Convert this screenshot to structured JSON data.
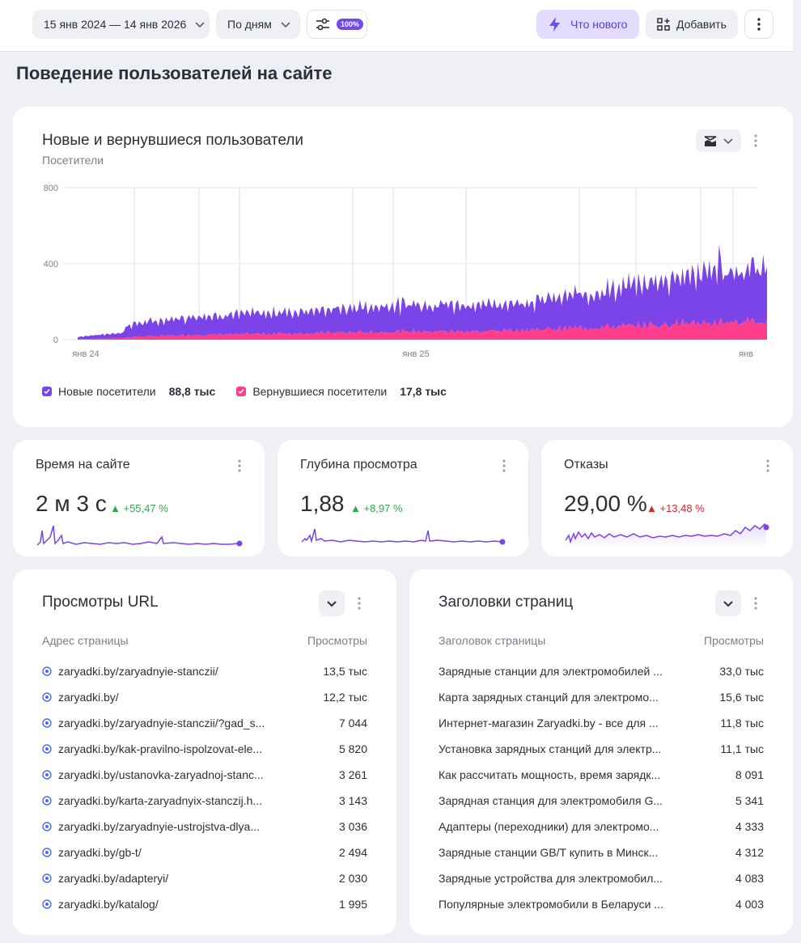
{
  "topbar": {
    "date_range": "15 янв 2024 — 14 янв 2026",
    "grouping": "По дням",
    "sampling_badge": "100%",
    "whats_new": "Что нового",
    "add": "Добавить"
  },
  "page_title": "Поведение пользователей на сайте",
  "main_chart": {
    "title": "Новые и вернувшиеся пользователи",
    "subtitle": "Посетители",
    "legend": [
      {
        "name": "Новые посетители",
        "total": "88,8 тыс",
        "color": "#7a44e8"
      },
      {
        "name": "Вернувшиеся посетители",
        "total": "17,8 тыс",
        "color": "#ff3d8b"
      }
    ]
  },
  "chart_data": {
    "type": "area",
    "stacked": true,
    "y_ticks": [
      "0",
      "400",
      "800"
    ],
    "ylim": [
      0,
      800
    ],
    "x_ticks": [
      "янв 24",
      "янв 25",
      "янв"
    ],
    "grid": true,
    "legend_position": "bottom-left",
    "x": [
      "2024-01-15",
      "2024-03-01",
      "2024-05-01",
      "2024-07-01",
      "2024-09-01",
      "2024-11-01",
      "2025-01-15",
      "2025-03-01",
      "2025-05-01",
      "2025-07-01",
      "2025-09-01",
      "2025-11-01",
      "2026-01-14"
    ],
    "series": [
      {
        "name": "Новые посетители",
        "values": [
          25,
          70,
          100,
          110,
          120,
          135,
          150,
          140,
          155,
          190,
          230,
          270,
          290
        ]
      },
      {
        "name": "Вернувшиеся посетители",
        "values": [
          5,
          15,
          25,
          30,
          35,
          40,
          45,
          45,
          55,
          65,
          80,
          90,
          100
        ]
      }
    ]
  },
  "kpis": [
    {
      "title": "Время на сайте",
      "value": "2 м 3 с",
      "delta": "▲ +55,47 %",
      "trend": "good"
    },
    {
      "title": "Глубина просмотра",
      "value": "1,88",
      "delta": "▲ +8,97 %",
      "trend": "good"
    },
    {
      "title": "Отказы",
      "value": "29,00 %",
      "delta": "▲ +13,48 %",
      "trend": "bad"
    }
  ],
  "urls": {
    "title": "Просмотры URL",
    "col_label": "Адрес страницы",
    "col_value": "Просмотры",
    "rows": [
      {
        "label": "zaryadki.by/zaryadnyie-stanczii/",
        "value": "13,5 тыс"
      },
      {
        "label": "zaryadki.by/",
        "value": "12,2 тыс"
      },
      {
        "label": "zaryadki.by/zaryadnyie-stanczii/?gad_s...",
        "value": "7 044"
      },
      {
        "label": "zaryadki.by/kak-pravilno-ispolzovat-ele...",
        "value": "5 820"
      },
      {
        "label": "zaryadki.by/ustanovka-zaryadnoj-stanc...",
        "value": "3 261"
      },
      {
        "label": "zaryadki.by/karta-zaryadnyix-stanczij.h...",
        "value": "3 143"
      },
      {
        "label": "zaryadki.by/zaryadnyie-ustrojstva-dlya...",
        "value": "3 036"
      },
      {
        "label": "zaryadki.by/gb-t/",
        "value": "2 494"
      },
      {
        "label": "zaryadki.by/adapteryi/",
        "value": "2 030"
      },
      {
        "label": "zaryadki.by/katalog/",
        "value": "1 995"
      }
    ]
  },
  "titles": {
    "title": "Заголовки страниц",
    "col_label": "Заголовок страницы",
    "col_value": "Просмотры",
    "rows": [
      {
        "label": "Зарядные станции для электромобилей ...",
        "value": "33,0 тыс"
      },
      {
        "label": "Карта зарядных станций для электромо...",
        "value": "15,6 тыс"
      },
      {
        "label": "Интернет-магазин Zaryadki.by - все для ...",
        "value": "11,8 тыс"
      },
      {
        "label": "Установка зарядных станций для электр...",
        "value": "11,1 тыс"
      },
      {
        "label": "Как рассчитать мощность, время зарядк...",
        "value": "8 091"
      },
      {
        "label": "Зарядная станция для электромобиля G...",
        "value": "5 341"
      },
      {
        "label": "Адаптеры (переходники) для электромо...",
        "value": "4 333"
      },
      {
        "label": "Зарядные станции GB/T купить в Минск...",
        "value": "4 312"
      },
      {
        "label": "Зарядные устройства для электромобил...",
        "value": "4 083"
      },
      {
        "label": "Популярные электромобили в Беларуси ...",
        "value": "4 003"
      }
    ]
  }
}
